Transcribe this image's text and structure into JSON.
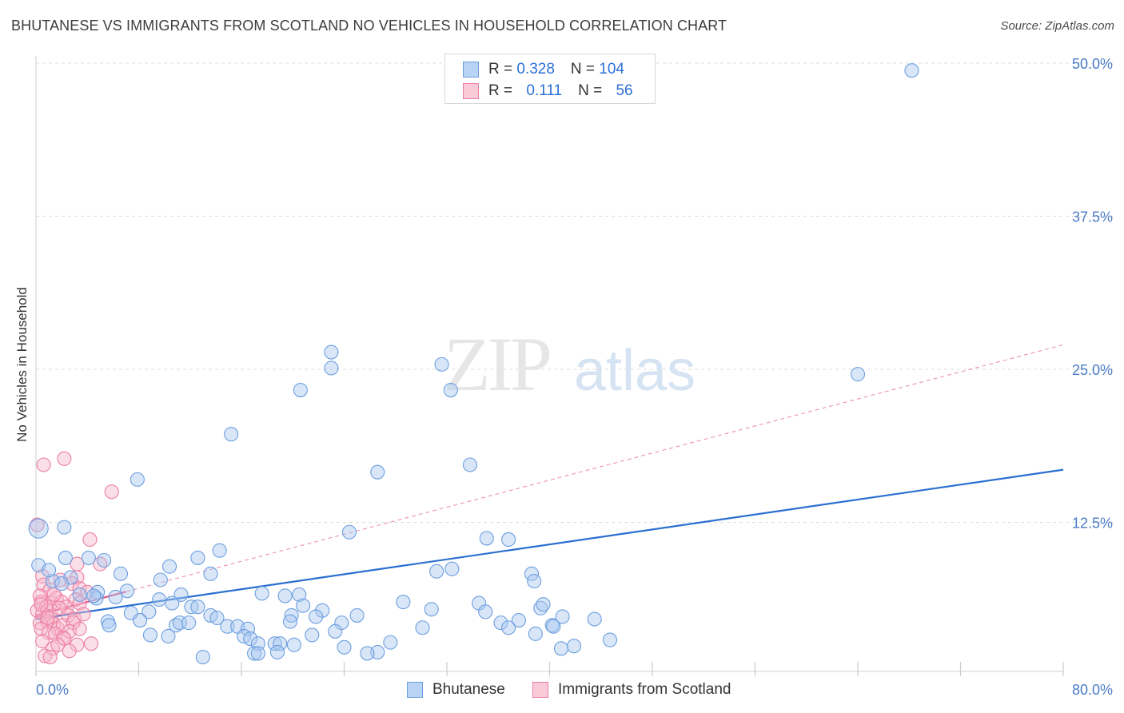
{
  "header": {
    "title": "BHUTANESE VS IMMIGRANTS FROM SCOTLAND NO VEHICLES IN HOUSEHOLD CORRELATION CHART",
    "source": "Source: ZipAtlas.com"
  },
  "legend": {
    "rows": [
      {
        "r_label": "R = ",
        "r_value": "0.328",
        "n_label": "N = ",
        "n_value": "104"
      },
      {
        "r_label": "R = ",
        "r_value": "0.111",
        "n_label": "N = ",
        "n_value": "56"
      }
    ]
  },
  "watermark": {
    "zip": "ZIP",
    "atlas": "atlas"
  },
  "colors": {
    "blue_fill": "#a9c8f0",
    "blue_stroke": "#6d9fe0",
    "blue_line": "#2a6fd0",
    "pink_fill": "#f6b8cb",
    "pink_stroke": "#ec7fa2",
    "pink_line": "#e05585",
    "tick_text": "#4a7cc7",
    "grid": "#dddddd"
  },
  "chart_data": {
    "type": "scatter",
    "title": "BHUTANESE VS IMMIGRANTS FROM SCOTLAND NO VEHICLES IN HOUSEHOLD CORRELATION CHART",
    "xlabel": "",
    "ylabel": "No Vehicles in Household",
    "xlim": [
      0,
      80
    ],
    "ylim": [
      0,
      52
    ],
    "x_tick_labels": [
      "0.0%",
      "80.0%"
    ],
    "y_ticks": [
      12.5,
      25.0,
      37.5,
      50.0
    ],
    "y_tick_labels": [
      "12.5%",
      "25.0%",
      "37.5%",
      "50.0%"
    ],
    "grid": true,
    "series": [
      {
        "name": "Bhutanese",
        "color": "#a9c8f0",
        "trend": {
          "x": [
            0,
            80
          ],
          "y": [
            4.6,
            16.8
          ],
          "style": "solid"
        },
        "points": [
          [
            68.2,
            49.4
          ],
          [
            64.0,
            24.6
          ],
          [
            23.0,
            25.1
          ],
          [
            20.6,
            23.3
          ],
          [
            31.6,
            25.4
          ],
          [
            32.3,
            23.3
          ],
          [
            23.0,
            26.4
          ],
          [
            15.2,
            19.7
          ],
          [
            26.6,
            16.6
          ],
          [
            33.8,
            17.2
          ],
          [
            7.9,
            16.0
          ],
          [
            0.2,
            12.0
          ],
          [
            2.2,
            12.1
          ],
          [
            24.4,
            11.7
          ],
          [
            35.1,
            11.2
          ],
          [
            36.8,
            11.1
          ],
          [
            14.3,
            10.2
          ],
          [
            12.6,
            9.6
          ],
          [
            2.3,
            9.6
          ],
          [
            4.1,
            9.6
          ],
          [
            5.3,
            9.4
          ],
          [
            10.4,
            8.9
          ],
          [
            0.2,
            9.0
          ],
          [
            31.2,
            8.5
          ],
          [
            32.4,
            8.7
          ],
          [
            38.6,
            8.3
          ],
          [
            6.6,
            8.3
          ],
          [
            13.6,
            8.3
          ],
          [
            2.7,
            8.0
          ],
          [
            1.3,
            7.7
          ],
          [
            9.7,
            7.8
          ],
          [
            38.8,
            7.7
          ],
          [
            1.0,
            8.6
          ],
          [
            4.8,
            6.8
          ],
          [
            2.0,
            7.5
          ],
          [
            3.4,
            6.6
          ],
          [
            4.7,
            6.3
          ],
          [
            7.1,
            6.9
          ],
          [
            11.3,
            6.6
          ],
          [
            17.6,
            6.7
          ],
          [
            19.4,
            6.5
          ],
          [
            20.5,
            6.6
          ],
          [
            28.6,
            6.0
          ],
          [
            4.5,
            6.5
          ],
          [
            6.2,
            6.4
          ],
          [
            9.6,
            6.2
          ],
          [
            10.6,
            5.9
          ],
          [
            12.1,
            5.6
          ],
          [
            12.6,
            5.6
          ],
          [
            20.8,
            5.7
          ],
          [
            22.3,
            5.3
          ],
          [
            30.8,
            5.4
          ],
          [
            34.5,
            5.9
          ],
          [
            35.0,
            5.2
          ],
          [
            39.3,
            5.5
          ],
          [
            39.5,
            5.8
          ],
          [
            7.4,
            5.1
          ],
          [
            8.8,
            5.2
          ],
          [
            13.6,
            4.9
          ],
          [
            14.1,
            4.7
          ],
          [
            19.9,
            4.9
          ],
          [
            21.8,
            4.8
          ],
          [
            23.8,
            4.3
          ],
          [
            25.0,
            4.9
          ],
          [
            36.2,
            4.3
          ],
          [
            37.6,
            4.5
          ],
          [
            40.2,
            4.1
          ],
          [
            41.0,
            4.8
          ],
          [
            43.5,
            4.6
          ],
          [
            5.6,
            4.4
          ],
          [
            5.7,
            4.1
          ],
          [
            8.1,
            4.5
          ],
          [
            10.9,
            4.1
          ],
          [
            11.2,
            4.3
          ],
          [
            11.9,
            4.3
          ],
          [
            14.9,
            4.0
          ],
          [
            15.7,
            4.0
          ],
          [
            16.5,
            3.8
          ],
          [
            19.8,
            4.4
          ],
          [
            21.5,
            3.3
          ],
          [
            30.1,
            3.9
          ],
          [
            36.8,
            3.9
          ],
          [
            38.9,
            3.4
          ],
          [
            40.3,
            4.0
          ],
          [
            8.9,
            3.3
          ],
          [
            10.3,
            3.2
          ],
          [
            16.2,
            3.2
          ],
          [
            16.7,
            3.0
          ],
          [
            17.3,
            2.6
          ],
          [
            18.6,
            2.6
          ],
          [
            19.0,
            2.6
          ],
          [
            20.1,
            2.5
          ],
          [
            27.6,
            2.7
          ],
          [
            40.9,
            2.2
          ],
          [
            41.9,
            2.4
          ],
          [
            44.7,
            2.9
          ],
          [
            26.6,
            1.9
          ],
          [
            13.0,
            1.5
          ],
          [
            17.0,
            1.8
          ],
          [
            17.3,
            1.8
          ],
          [
            18.8,
            1.9
          ],
          [
            24.0,
            2.3
          ],
          [
            25.8,
            1.8
          ],
          [
            23.3,
            3.6
          ]
        ]
      },
      {
        "name": "Immigrants from Scotland",
        "color": "#f6b8cb",
        "trend": {
          "x": [
            0,
            80
          ],
          "y": [
            4.9,
            27.0
          ],
          "style": "dashed"
        },
        "points": [
          [
            0.6,
            17.2
          ],
          [
            2.2,
            17.7
          ],
          [
            5.9,
            15.0
          ],
          [
            0.1,
            12.3
          ],
          [
            4.2,
            11.1
          ],
          [
            3.2,
            9.1
          ],
          [
            3.2,
            8.0
          ],
          [
            5.0,
            9.1
          ],
          [
            0.5,
            8.1
          ],
          [
            0.6,
            7.4
          ],
          [
            1.1,
            7.0
          ],
          [
            1.9,
            7.8
          ],
          [
            2.8,
            7.5
          ],
          [
            3.4,
            7.1
          ],
          [
            4.0,
            6.8
          ],
          [
            0.3,
            6.5
          ],
          [
            0.4,
            6.0
          ],
          [
            0.8,
            5.6
          ],
          [
            1.2,
            5.9
          ],
          [
            1.6,
            6.3
          ],
          [
            2.0,
            6.0
          ],
          [
            2.4,
            5.6
          ],
          [
            3.1,
            6.2
          ],
          [
            3.4,
            5.9
          ],
          [
            0.1,
            5.3
          ],
          [
            0.5,
            5.0
          ],
          [
            0.9,
            5.3
          ],
          [
            1.2,
            4.8
          ],
          [
            1.8,
            5.5
          ],
          [
            2.5,
            4.9
          ],
          [
            3.0,
            4.6
          ],
          [
            3.7,
            5.0
          ],
          [
            0.3,
            4.3
          ],
          [
            0.9,
            4.4
          ],
          [
            1.4,
            4.2
          ],
          [
            1.7,
            3.8
          ],
          [
            2.1,
            4.1
          ],
          [
            2.9,
            4.3
          ],
          [
            0.4,
            3.8
          ],
          [
            1.0,
            3.5
          ],
          [
            1.5,
            3.4
          ],
          [
            2.1,
            3.1
          ],
          [
            2.6,
            3.6
          ],
          [
            3.4,
            3.8
          ],
          [
            2.2,
            3.0
          ],
          [
            3.2,
            2.5
          ],
          [
            4.3,
            2.6
          ],
          [
            0.5,
            2.8
          ],
          [
            1.3,
            2.2
          ],
          [
            1.7,
            2.5
          ],
          [
            0.7,
            1.6
          ],
          [
            1.1,
            1.5
          ],
          [
            2.6,
            2.0
          ],
          [
            0.4,
            5.8
          ],
          [
            1.4,
            6.6
          ],
          [
            0.9,
            4.7
          ]
        ]
      }
    ]
  },
  "bottom_legend": {
    "items": [
      "Bhutanese",
      "Immigrants from Scotland"
    ]
  }
}
